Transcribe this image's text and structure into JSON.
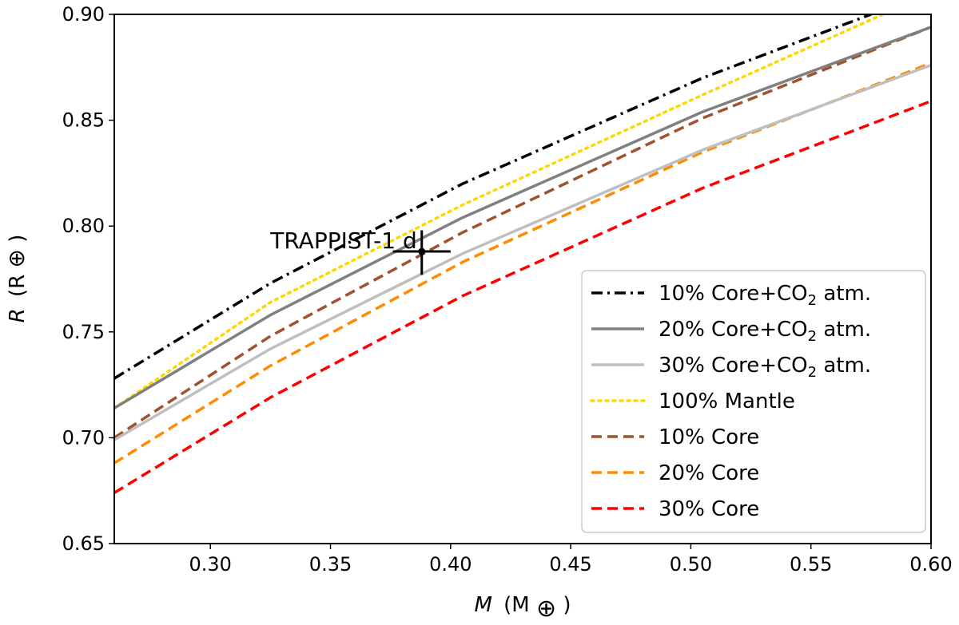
{
  "chart_data": {
    "type": "line",
    "xlabel": {
      "var": "M",
      "unit": "(M",
      "sub": "⊕",
      "close": ")"
    },
    "ylabel": {
      "var": "R",
      "unit": "(R",
      "sym": "⊕",
      "close": ")"
    },
    "xlim": [
      0.26,
      0.6
    ],
    "ylim": [
      0.65,
      0.9
    ],
    "xticks": [
      "0.30",
      "0.35",
      "0.40",
      "0.45",
      "0.50",
      "0.55",
      "0.60"
    ],
    "yticks": [
      "0.65",
      "0.70",
      "0.75",
      "0.80",
      "0.85",
      "0.90"
    ],
    "grid": false,
    "legend_position": "lower-right",
    "series": [
      {
        "name": "10% Core+CO2 atm.",
        "color": "#000000",
        "style": "dashdot",
        "x": [
          0.26,
          0.325,
          0.405,
          0.505,
          0.575
        ],
        "y": [
          0.728,
          0.773,
          0.82,
          0.87,
          0.9
        ]
      },
      {
        "name": "20% Core+CO2 atm.",
        "color": "#808080",
        "style": "solid",
        "x": [
          0.26,
          0.325,
          0.405,
          0.505,
          0.6
        ],
        "y": [
          0.714,
          0.758,
          0.804,
          0.854,
          0.894
        ]
      },
      {
        "name": "30% Core+CO2 atm.",
        "color": "#bfbfbf",
        "style": "solid",
        "x": [
          0.26,
          0.325,
          0.405,
          0.505,
          0.6
        ],
        "y": [
          0.699,
          0.742,
          0.787,
          0.836,
          0.876
        ]
      },
      {
        "name": "100% Mantle",
        "color": "#ffd700",
        "style": "dotted",
        "x": [
          0.26,
          0.325,
          0.405,
          0.505,
          0.58
        ],
        "y": [
          0.714,
          0.764,
          0.81,
          0.862,
          0.9
        ]
      },
      {
        "name": "10% Core",
        "color": "#a0522d",
        "style": "dashed",
        "x": [
          0.26,
          0.325,
          0.405,
          0.505,
          0.6
        ],
        "y": [
          0.7,
          0.748,
          0.797,
          0.851,
          0.894
        ]
      },
      {
        "name": "20% Core",
        "color": "#ff8c00",
        "style": "dashed",
        "x": [
          0.26,
          0.325,
          0.405,
          0.505,
          0.6
        ],
        "y": [
          0.688,
          0.734,
          0.783,
          0.835,
          0.877
        ]
      },
      {
        "name": "30% Core",
        "color": "#ff0000",
        "style": "dashed",
        "x": [
          0.26,
          0.325,
          0.405,
          0.505,
          0.6
        ],
        "y": [
          0.674,
          0.719,
          0.767,
          0.818,
          0.859
        ]
      }
    ],
    "legend": [
      {
        "pre": "10% Core+CO",
        "sub": "2",
        "post": " atm."
      },
      {
        "pre": "20% Core+CO",
        "sub": "2",
        "post": " atm."
      },
      {
        "pre": "30% Core+CO",
        "sub": "2",
        "post": " atm."
      },
      {
        "pre": "100% Mantle",
        "sub": "",
        "post": ""
      },
      {
        "pre": "10% Core",
        "sub": "",
        "post": ""
      },
      {
        "pre": "20% Core",
        "sub": "",
        "post": ""
      },
      {
        "pre": "30% Core",
        "sub": "",
        "post": ""
      }
    ],
    "point": {
      "label": "TRAPPIST-1 d",
      "x": 0.388,
      "y": 0.788,
      "xerr": [
        0.376,
        0.4
      ],
      "yerr": [
        0.777,
        0.798
      ]
    }
  }
}
